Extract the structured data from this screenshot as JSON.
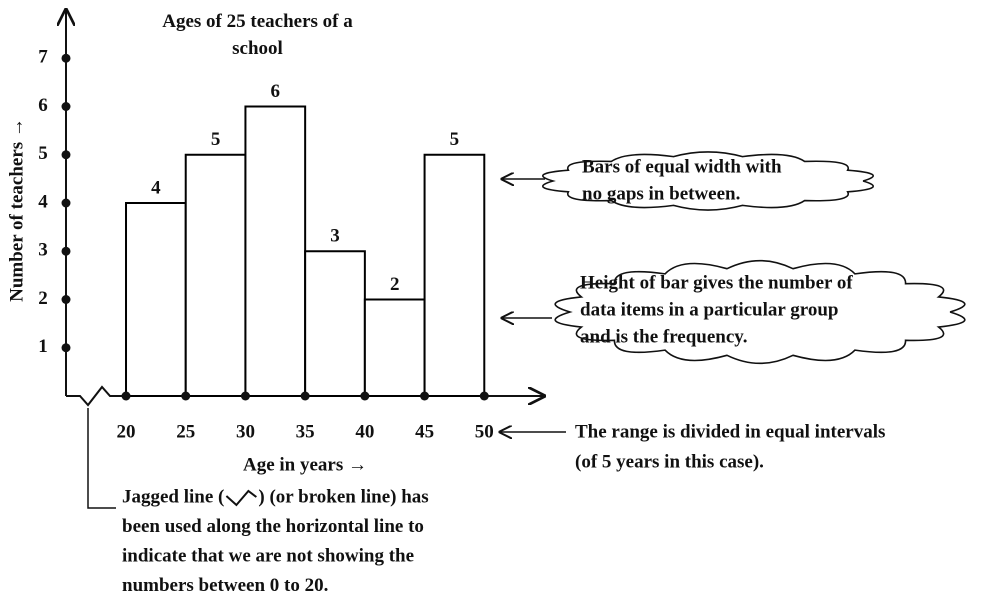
{
  "chart_data": {
    "type": "histogram",
    "title": "Ages of 25 teachers of a school",
    "xlabel": "Age in years →",
    "ylabel": "Number of teachers →",
    "bins": [
      20,
      25,
      30,
      35,
      40,
      45,
      50
    ],
    "counts": [
      4,
      5,
      6,
      3,
      2,
      5
    ],
    "color": "#ffffff",
    "edgecolor": "#000000",
    "xlim": [
      15,
      55
    ],
    "xticks": [
      20,
      25,
      30,
      35,
      40,
      45,
      50
    ],
    "ylim": [
      0,
      8
    ],
    "yticks": [
      1,
      2,
      3,
      4,
      5,
      6,
      7
    ],
    "grid": false,
    "annotations": [
      {
        "lines": [
          "Bars of equal width with",
          "no gaps in between."
        ]
      },
      {
        "lines": [
          "Height of bar gives the number of",
          "data items in a particular group",
          "and is the frequency."
        ]
      },
      {
        "lines": [
          "The range is divided in equal intervals",
          "(of 5 years in this case)."
        ]
      },
      {
        "lines": [
          [
            "Jagged line (",
            ") (or broken line) has"
          ],
          "been used along the horizontal line to",
          "indicate that we are not showing the",
          "numbers between 0 to 20."
        ]
      }
    ]
  }
}
